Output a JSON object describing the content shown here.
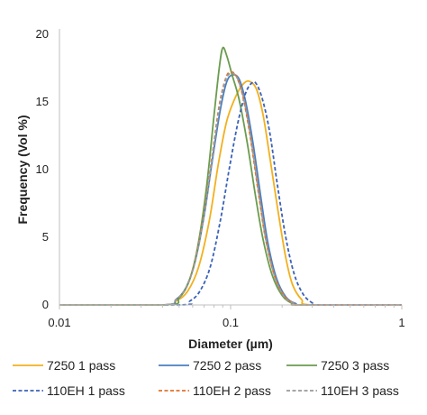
{
  "chart_data": {
    "type": "line",
    "xlabel": "Diameter (µm)",
    "ylabel": "Frequency (Vol %)",
    "xscale": "log",
    "xlim": [
      0.01,
      1
    ],
    "ylim": [
      0,
      20
    ],
    "xticks": [
      {
        "value": 0.01,
        "label": "0.01"
      },
      {
        "value": 0.1,
        "label": "0.1"
      },
      {
        "value": 1,
        "label": "1"
      }
    ],
    "yticks": [
      {
        "value": 0,
        "label": "0"
      },
      {
        "value": 5,
        "label": "5"
      },
      {
        "value": 10,
        "label": "10"
      },
      {
        "value": 15,
        "label": "15"
      },
      {
        "value": 20,
        "label": "20"
      }
    ],
    "grid": false,
    "legend_position": "bottom",
    "series": [
      {
        "name": "7250 1 pass",
        "color": "#f2b01e",
        "dash": "solid",
        "points": [
          [
            0.01,
            0
          ],
          [
            0.04,
            0
          ],
          [
            0.048,
            0.3
          ],
          [
            0.056,
            1.0
          ],
          [
            0.065,
            2.8
          ],
          [
            0.075,
            6.2
          ],
          [
            0.085,
            10.5
          ],
          [
            0.095,
            13.6
          ],
          [
            0.108,
            15.5
          ],
          [
            0.12,
            16.4
          ],
          [
            0.13,
            16.5
          ],
          [
            0.142,
            15.9
          ],
          [
            0.155,
            14.0
          ],
          [
            0.17,
            10.8
          ],
          [
            0.19,
            6.8
          ],
          [
            0.21,
            3.5
          ],
          [
            0.23,
            1.5
          ],
          [
            0.26,
            0.4
          ],
          [
            0.3,
            0
          ],
          [
            1,
            0
          ]
        ]
      },
      {
        "name": "7250 2 pass",
        "color": "#4a7fc1",
        "dash": "solid",
        "points": [
          [
            0.01,
            0
          ],
          [
            0.04,
            0
          ],
          [
            0.048,
            0.4
          ],
          [
            0.055,
            1.3
          ],
          [
            0.062,
            3.2
          ],
          [
            0.07,
            6.6
          ],
          [
            0.078,
            10.6
          ],
          [
            0.087,
            14.4
          ],
          [
            0.095,
            16.5
          ],
          [
            0.103,
            17.0
          ],
          [
            0.112,
            16.7
          ],
          [
            0.122,
            15.1
          ],
          [
            0.135,
            12.0
          ],
          [
            0.15,
            8.0
          ],
          [
            0.165,
            4.6
          ],
          [
            0.185,
            2.0
          ],
          [
            0.21,
            0.6
          ],
          [
            0.24,
            0.1
          ],
          [
            0.27,
            0
          ],
          [
            1,
            0
          ]
        ]
      },
      {
        "name": "7250 3 pass",
        "color": "#6a9c4e",
        "dash": "solid",
        "points": [
          [
            0.01,
            0
          ],
          [
            0.042,
            0
          ],
          [
            0.05,
            0.5
          ],
          [
            0.057,
            1.7
          ],
          [
            0.064,
            4.2
          ],
          [
            0.072,
            8.5
          ],
          [
            0.08,
            14.0
          ],
          [
            0.086,
            17.6
          ],
          [
            0.09,
            19.0
          ],
          [
            0.095,
            18.4
          ],
          [
            0.102,
            17.0
          ],
          [
            0.112,
            15.2
          ],
          [
            0.125,
            12.0
          ],
          [
            0.14,
            8.0
          ],
          [
            0.155,
            4.8
          ],
          [
            0.175,
            2.2
          ],
          [
            0.2,
            0.7
          ],
          [
            0.23,
            0.1
          ],
          [
            0.26,
            0
          ],
          [
            1,
            0
          ]
        ]
      },
      {
        "name": "110EH 1 pass",
        "color": "#3b62b8",
        "dash": "dashed",
        "points": [
          [
            0.01,
            0
          ],
          [
            0.05,
            0
          ],
          [
            0.058,
            0.3
          ],
          [
            0.066,
            1.0
          ],
          [
            0.076,
            2.8
          ],
          [
            0.087,
            6.2
          ],
          [
            0.098,
            10.0
          ],
          [
            0.11,
            13.4
          ],
          [
            0.122,
            15.6
          ],
          [
            0.133,
            16.4
          ],
          [
            0.142,
            16.3
          ],
          [
            0.155,
            15.0
          ],
          [
            0.17,
            12.6
          ],
          [
            0.188,
            8.8
          ],
          [
            0.21,
            5.0
          ],
          [
            0.235,
            2.3
          ],
          [
            0.265,
            0.8
          ],
          [
            0.3,
            0.15
          ],
          [
            0.33,
            0
          ],
          [
            1,
            0
          ]
        ]
      },
      {
        "name": "110EH 2 pass",
        "color": "#e0722b",
        "dash": "dashed",
        "points": [
          [
            0.01,
            0
          ],
          [
            0.04,
            0
          ],
          [
            0.048,
            0.4
          ],
          [
            0.055,
            1.3
          ],
          [
            0.062,
            3.3
          ],
          [
            0.07,
            6.8
          ],
          [
            0.078,
            11.0
          ],
          [
            0.086,
            14.8
          ],
          [
            0.094,
            16.8
          ],
          [
            0.1,
            17.2
          ],
          [
            0.108,
            16.9
          ],
          [
            0.118,
            15.4
          ],
          [
            0.13,
            12.5
          ],
          [
            0.145,
            8.4
          ],
          [
            0.16,
            4.9
          ],
          [
            0.18,
            2.2
          ],
          [
            0.205,
            0.7
          ],
          [
            0.235,
            0.1
          ],
          [
            0.26,
            0
          ],
          [
            1,
            0
          ]
        ]
      },
      {
        "name": "110EH 3 pass",
        "color": "#9a9a9a",
        "dash": "dashed",
        "points": [
          [
            0.01,
            0
          ],
          [
            0.04,
            0
          ],
          [
            0.048,
            0.4
          ],
          [
            0.055,
            1.3
          ],
          [
            0.062,
            3.2
          ],
          [
            0.07,
            6.6
          ],
          [
            0.078,
            10.8
          ],
          [
            0.086,
            14.6
          ],
          [
            0.094,
            16.7
          ],
          [
            0.101,
            17.1
          ],
          [
            0.109,
            16.8
          ],
          [
            0.119,
            15.3
          ],
          [
            0.131,
            12.4
          ],
          [
            0.146,
            8.3
          ],
          [
            0.161,
            4.8
          ],
          [
            0.181,
            2.1
          ],
          [
            0.206,
            0.6
          ],
          [
            0.236,
            0.1
          ],
          [
            0.26,
            0
          ],
          [
            1,
            0
          ]
        ]
      }
    ]
  }
}
